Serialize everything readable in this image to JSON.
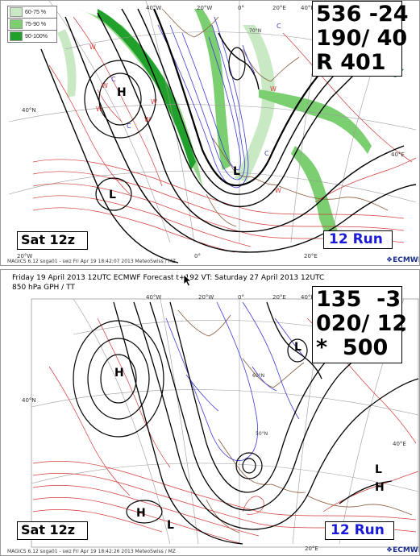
{
  "top_panel": {
    "legend": [
      {
        "label": "60-75 %",
        "color": "#c9e8c4"
      },
      {
        "label": "75-90 %",
        "color": "#7bcf71"
      },
      {
        "label": "90-100%",
        "color": "#21a02c"
      }
    ],
    "corner_values": [
      "536 -24",
      "190/ 40",
      "R 401"
    ],
    "day_label": "Sat 12z",
    "run_label": "12 Run",
    "footer": "MAGICS 6.12 sxga01 - swz Fri Apr 19 18:42:07 2013 MeteoSwiss / MZ",
    "logo": "ECMWF",
    "lon_labels": [
      "40°W",
      "20°W",
      "0°",
      "20°E",
      "40°E"
    ],
    "lat_labels": [
      "40°N",
      "40°E",
      "70°N",
      "20°E"
    ],
    "pressure_centres": [
      "H",
      "L",
      "L"
    ]
  },
  "bottom_panel": {
    "header_line1": "Friday 19 April 2013 12UTC ECMWF Forecast t+192 VT: Saturday 27 April 2013 12UTC",
    "header_line2": "850 hPa GPH / TT",
    "corner_values": [
      "135  -3",
      "020/ 12",
      "*  500"
    ],
    "day_label": "Sat 12z",
    "run_label": "12 Run",
    "footer": "MAGICS 6.12 sxga01 - swz Fri Apr 19 18:42:26 2013 MeteoSwiss / MZ",
    "logo": "ECMWF",
    "lon_labels": [
      "40°W",
      "20°W",
      "0°",
      "20°E",
      "40°E"
    ],
    "lat_labels": [
      "40°N",
      "60°N",
      "50°N",
      "40°E",
      "20°E"
    ],
    "pressure_centres": [
      "H",
      "L",
      "L",
      "H",
      "H",
      "L"
    ]
  },
  "colors": {
    "geopotential": "#000000",
    "temperature_warm": "#d43a3a",
    "temperature_cold": "#3a3ad4",
    "coastline": "#8a5a3a",
    "grid": "#9a9a9a"
  }
}
